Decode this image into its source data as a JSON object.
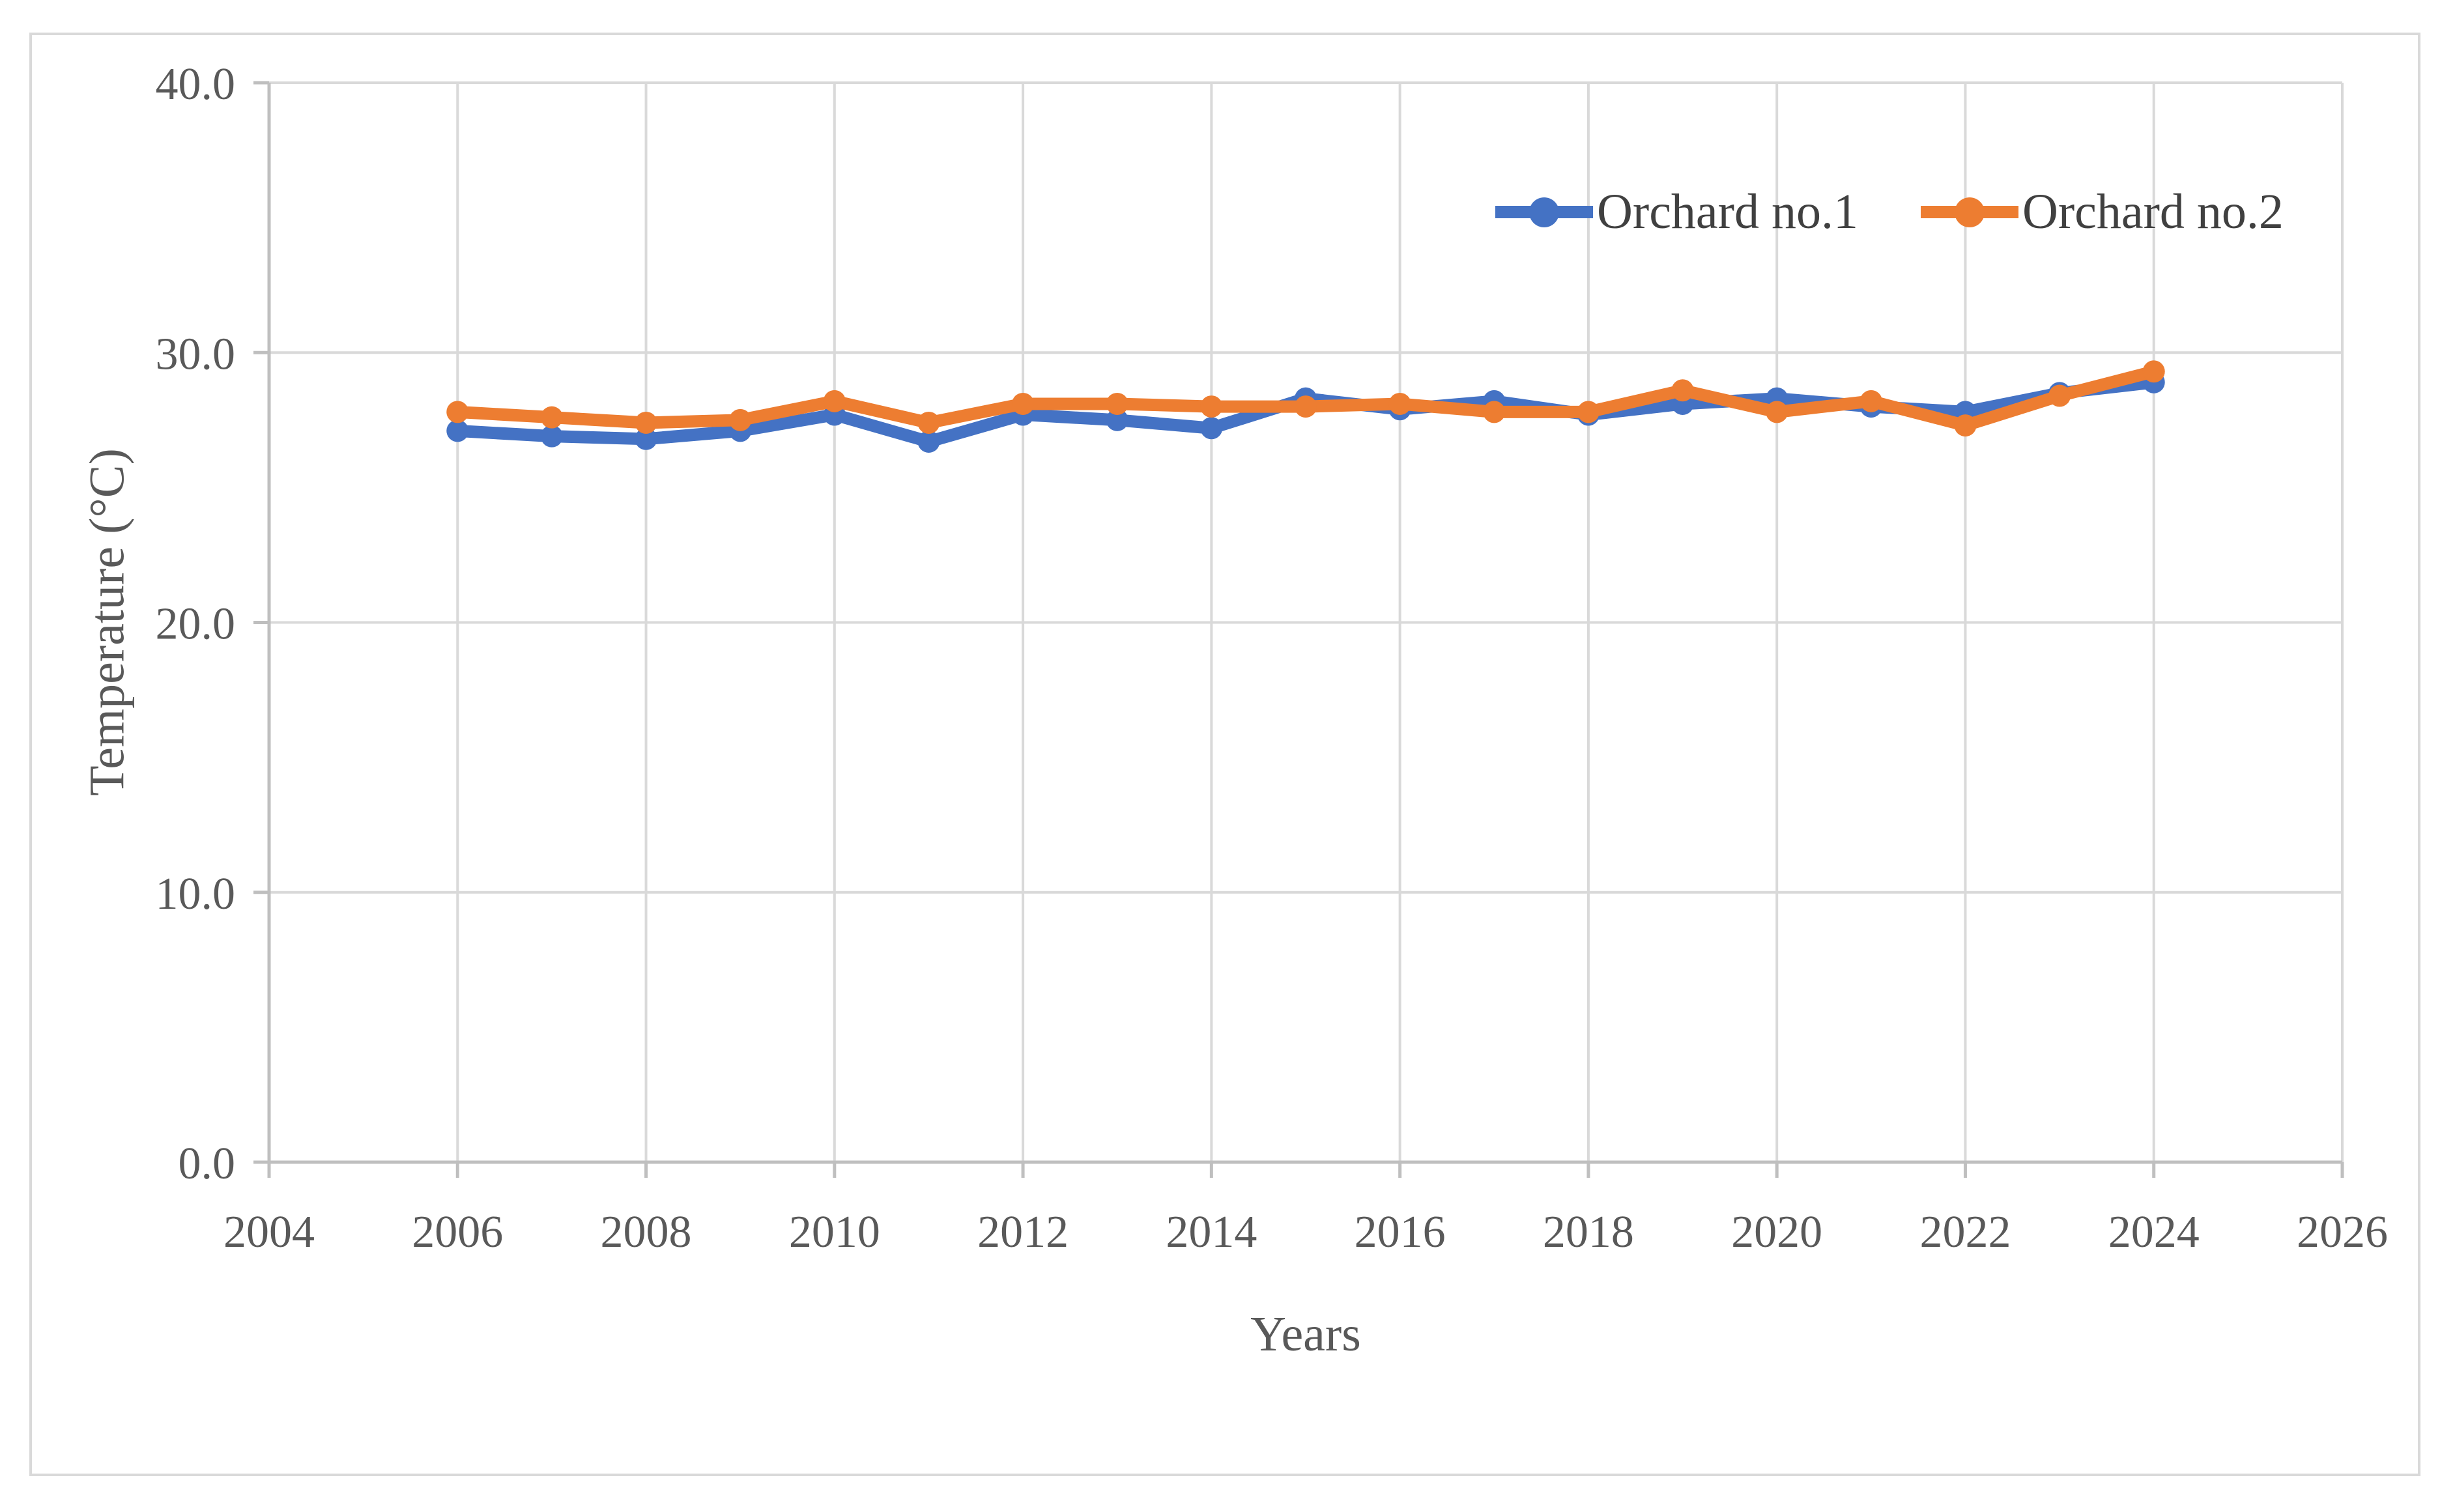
{
  "chart_data": {
    "type": "line",
    "title": "",
    "xlabel": "Years",
    "ylabel": "Temperature (°C)",
    "x": [
      2006,
      2007,
      2008,
      2009,
      2010,
      2011,
      2012,
      2013,
      2014,
      2015,
      2016,
      2017,
      2018,
      2019,
      2020,
      2021,
      2022,
      2023,
      2024
    ],
    "series": [
      {
        "name": "Orchard no.1",
        "color": "#4472C4",
        "values": [
          27.1,
          26.9,
          26.8,
          27.1,
          27.7,
          26.7,
          27.7,
          27.5,
          27.2,
          28.3,
          27.9,
          28.2,
          27.7,
          28.1,
          28.3,
          28.0,
          27.8,
          28.5,
          28.9
        ]
      },
      {
        "name": "Orchard no.2",
        "color": "#ED7D31",
        "values": [
          27.8,
          27.6,
          27.4,
          27.5,
          28.2,
          27.4,
          28.1,
          28.1,
          28.0,
          28.0,
          28.1,
          27.8,
          27.8,
          28.6,
          27.8,
          28.2,
          27.3,
          28.4,
          29.3
        ]
      }
    ],
    "xlim": [
      2004,
      2026
    ],
    "ylim": [
      0,
      40
    ],
    "xticks": [
      2004,
      2006,
      2008,
      2010,
      2012,
      2014,
      2016,
      2018,
      2020,
      2022,
      2024,
      2026
    ],
    "xtick_labels": [
      "2004",
      "2006",
      "2008",
      "2010",
      "2012",
      "2014",
      "2016",
      "2018",
      "2020",
      "2022",
      "2024",
      "2026"
    ],
    "yticks": [
      0,
      10,
      20,
      30,
      40
    ],
    "ytick_labels": [
      "0.0",
      "10.0",
      "20.0",
      "30.0",
      "40.0"
    ],
    "grid": true,
    "legend_position": "top-right-inside",
    "colors": {
      "gridline": "#D9D9D9",
      "axis": "#BFBFBF",
      "tick_label": "#595959",
      "legend_text": "#404040",
      "figure_border": "#D9D9D9"
    }
  }
}
